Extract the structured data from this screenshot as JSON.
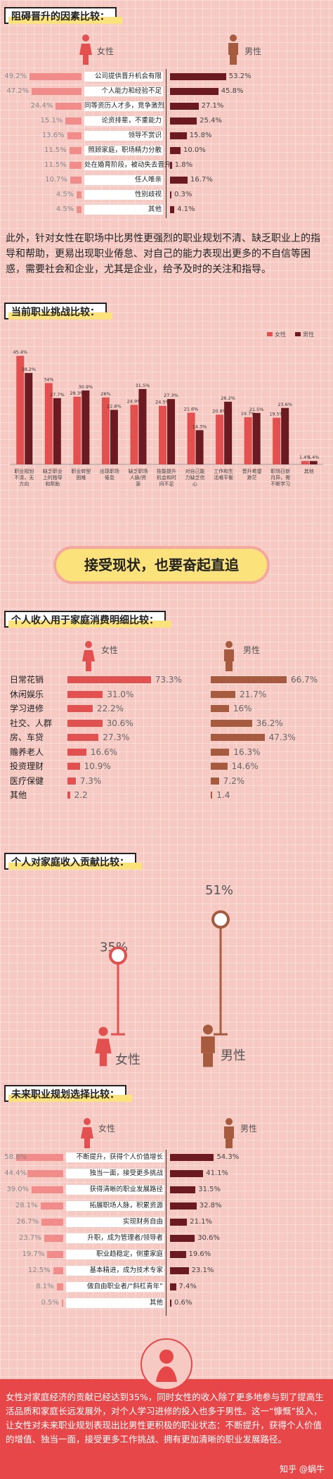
{
  "colors": {
    "female": "#e2514f",
    "female_light": "#f28c8b",
    "male": "#6b1a22",
    "male_brown": "#a65a3e",
    "accent_yellow": "#fbe27a",
    "bg": "#f6c9c3"
  },
  "section1": {
    "title": "阻碍晋升的因素比较：",
    "female_label": "女性",
    "male_label": "男性"
  },
  "section1_rows": [
    {
      "label": "公司提供晋升机会有限",
      "f": "49.2%",
      "m": "53.2%"
    },
    {
      "label": "个人能力和经验不足",
      "f": "47.2%",
      "m": "45.8%"
    },
    {
      "label": "同等资历人才多，竞争激烈",
      "f": "24.4%",
      "m": "27.1%"
    },
    {
      "label": "论资排辈，不重能力",
      "f": "15.1%",
      "m": "25.4%"
    },
    {
      "label": "领导不赏识",
      "f": "13.6%",
      "m": "15.8%"
    },
    {
      "label": "照顾家庭，职场精力分散",
      "f": "11.5%",
      "m": "10.0%"
    },
    {
      "label": "处在婚育阶段，被动失去晋升",
      "f": "11.5%",
      "m": "1.8%"
    },
    {
      "label": "任人唯亲",
      "f": "10.7%",
      "m": "16.7%"
    },
    {
      "label": "性别歧视",
      "f": "4.5%",
      "m": "0.3%"
    },
    {
      "label": "其他",
      "f": "4.5%",
      "m": "4.1%"
    }
  ],
  "para1": "此外，针对女性在职场中比男性更强烈的职业规划不清、缺乏职业上的指导和帮助，更易出现职业倦怠、对自己的能力表现出更多的不自信等困惑，需要社会和企业，尤其是企业，给予及时的关注和指导。",
  "section2": {
    "title": "当前职业挑战比较：",
    "legend_f": "女性",
    "legend_m": "男性"
  },
  "chart_data": [
    {
      "type": "bar",
      "title": "当前职业挑战比较：",
      "categories": [
        "职业规划不清，无方向",
        "缺乏职业上的指导和帮助",
        "职业转型困难",
        "出现职场倦怠",
        "缺乏职场人脉/资源",
        "技能提升机会和时间不足",
        "对自己能力缺乏信心",
        "工作和生活难平衡",
        "晋升希望渺茫",
        "职场日新月异，需不断学习",
        "其他"
      ],
      "series": [
        {
          "name": "女性",
          "values": [
            45.4,
            34,
            28.3,
            28,
            24.9,
            24.5,
            21.6,
            20.8,
            19.7,
            19.5,
            1.4
          ]
        },
        {
          "name": "男性",
          "values": [
            38.2,
            27.7,
            30.9,
            22.8,
            31.5,
            27.3,
            14.3,
            26.2,
            21.5,
            23.6,
            1.4
          ]
        }
      ],
      "value_labels": {
        "女性": [
          "45.4%",
          "34%",
          "28.3%",
          "28%",
          "24.9%",
          "24.5%",
          "21.6%",
          "20.8%",
          "19.7%",
          "19.5%",
          "1.4%"
        ],
        "男性": [
          "38.2%",
          "27.7%",
          "30.9%",
          "22.8%",
          "31.5%",
          "27.3%",
          "14.3%",
          "26.2%",
          "21.5%",
          "23.6%",
          "1.4%"
        ]
      },
      "ylim": [
        0,
        50
      ],
      "legend": "top-right"
    }
  ],
  "banner": "接受现状，也要奋起直追",
  "section3": {
    "title": "个人收入用于家庭消费明细比较：",
    "female_label": "女性",
    "male_label": "男性"
  },
  "section3_rows": [
    {
      "label": "日常花销",
      "f": "73.3%",
      "m": "66.7%",
      "fv": 73.3,
      "mv": 66.7
    },
    {
      "label": "休闲娱乐",
      "f": "31.0%",
      "m": "21.7%",
      "fv": 31.0,
      "mv": 21.7
    },
    {
      "label": "学习进修",
      "f": "22.2%",
      "m": "16%",
      "fv": 22.2,
      "mv": 16
    },
    {
      "label": "社交、人群",
      "f": "30.6%",
      "m": "36.2%",
      "fv": 30.6,
      "mv": 36.2
    },
    {
      "label": "房、车贷",
      "f": "27.3%",
      "m": "47.3%",
      "fv": 27.3,
      "mv": 47.3
    },
    {
      "label": "赡养老人",
      "f": "16.6%",
      "m": "16.3%",
      "fv": 16.6,
      "mv": 16.3
    },
    {
      "label": "投资理财",
      "f": "10.9%",
      "m": "14.6%",
      "fv": 10.9,
      "mv": 14.6
    },
    {
      "label": "医疗保健",
      "f": "7.3%",
      "m": "7.2%",
      "fv": 7.3,
      "mv": 7.2
    },
    {
      "label": "其他",
      "f": "2.2",
      "m": "1.4",
      "fv": 2.2,
      "mv": 1.4
    }
  ],
  "section4": {
    "title": "个人对家庭收入贡献比较：",
    "female_pct": "35%",
    "male_pct": "51%",
    "female_label": "女性",
    "male_label": "男性",
    "female_value": 35,
    "male_value": 51
  },
  "section5": {
    "title": "未来职业规划选择比较：",
    "female_label": "女性",
    "male_label": "男性"
  },
  "section5_rows": [
    {
      "label": "不断提升，获得个人价值增长",
      "f": "58.6%",
      "m": "54.3%",
      "fv": 58.6,
      "mv": 54.3
    },
    {
      "label": "独当一面，接受更多挑战",
      "f": "44.4%",
      "m": "41.1%",
      "fv": 44.4,
      "mv": 41.1
    },
    {
      "label": "获得清晰的职业发展路径",
      "f": "39.0%",
      "m": "31.5%",
      "fv": 39.0,
      "mv": 31.5
    },
    {
      "label": "拓展职场人脉，积累资源",
      "f": "28.1%",
      "m": "32.8%",
      "fv": 28.1,
      "mv": 32.8
    },
    {
      "label": "实现财务自由",
      "f": "26.7%",
      "m": "21.1%",
      "fv": 26.7,
      "mv": 21.1
    },
    {
      "label": "升职，成为管理者/领导者",
      "f": "23.7%",
      "m": "30.6%",
      "fv": 23.7,
      "mv": 30.6
    },
    {
      "label": "职业趋稳定，侧重家庭",
      "f": "19.7%",
      "m": "19.6%",
      "fv": 19.7,
      "mv": 19.6
    },
    {
      "label": "基本精进，成为技术专家",
      "f": "12.5%",
      "m": "23.1%",
      "fv": 12.5,
      "mv": 23.1
    },
    {
      "label": "做自由职业者/“斜杠青年”",
      "f": "8.1%",
      "m": "7.4%",
      "fv": 8.1,
      "mv": 7.4
    },
    {
      "label": "其他",
      "f": "0.5%",
      "m": "0.6%",
      "fv": 0.5,
      "mv": 0.6
    }
  ],
  "footer": {
    "text": "女性对家庭经济的贡献已经达到35%，同时女性的收入除了更多地参与到了提高生活品质和家庭长远发展外，对个人学习进修的投入也多于男性。这一“慷慨”投入，让女性对未来职业规划表现出比男性更积极的职业状态：不断提升，获得个人价值的增值、独当一面，接受更多工作挑战、拥有更加清晰的职业发展路径。",
    "watermark": "知乎 @蜗牛"
  }
}
